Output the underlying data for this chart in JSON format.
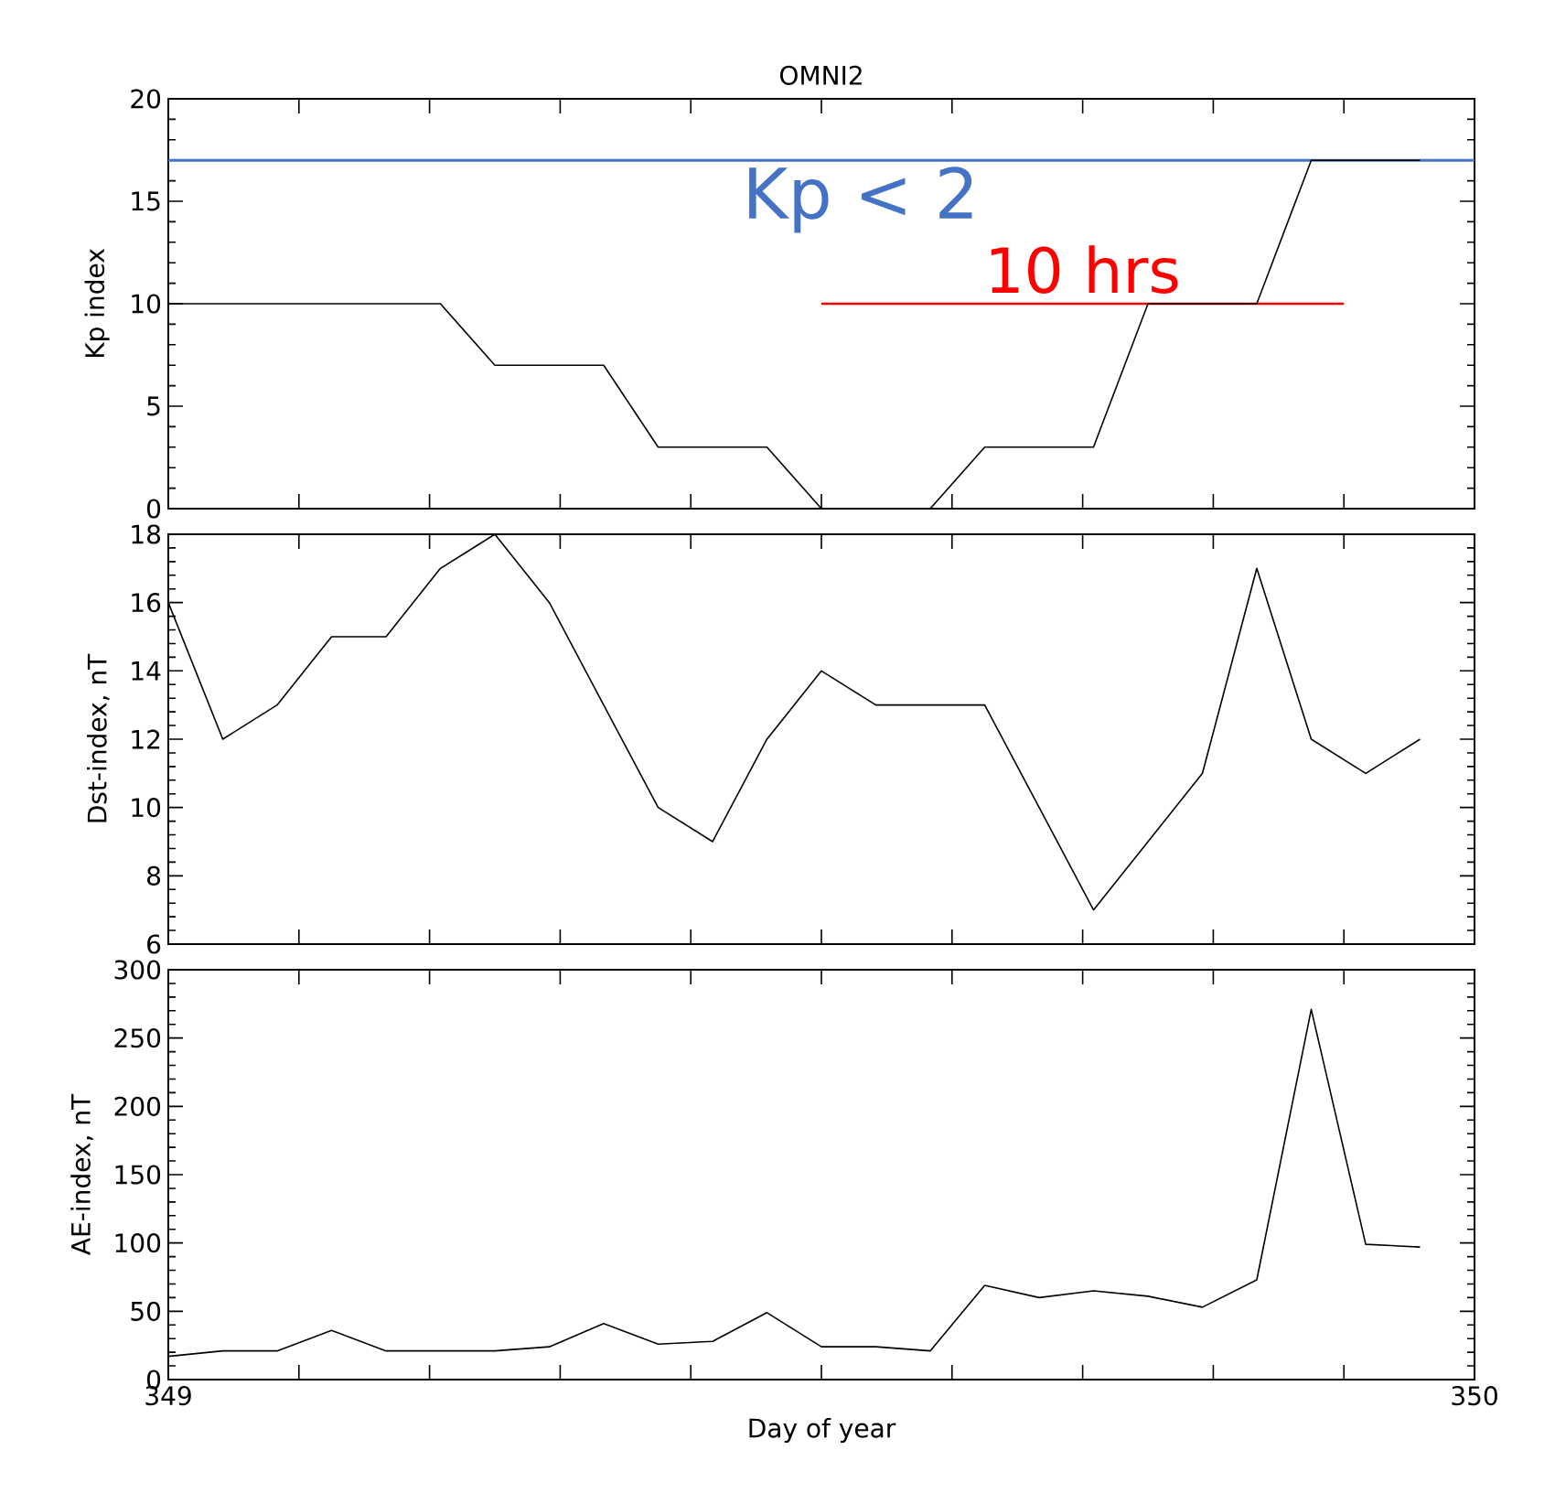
{
  "chart_data": [
    {
      "type": "line",
      "title": "OMNI2",
      "ylabel": "Kp index",
      "x": [
        349.0,
        349.0417,
        349.0833,
        349.125,
        349.1667,
        349.2083,
        349.25,
        349.2917,
        349.3333,
        349.375,
        349.4167,
        349.4583,
        349.5,
        349.5417,
        349.5833,
        349.625,
        349.6667,
        349.7083,
        349.75,
        349.7917,
        349.8333,
        349.875,
        349.9167,
        349.9583
      ],
      "series": [
        {
          "color": "#000000",
          "values": [
            10,
            10,
            10,
            10,
            10,
            10,
            7,
            7,
            7,
            3,
            3,
            3,
            0,
            0,
            0,
            3,
            3,
            3,
            10,
            10,
            10,
            17,
            17,
            17
          ]
        },
        {
          "type": "line",
          "color": "#ff0000",
          "x": [
            349.5,
            349.9
          ],
          "values": [
            10,
            10
          ]
        }
      ],
      "ref_lines": [
        {
          "axis": "y",
          "value": 17,
          "label": "Kp < 2",
          "color": "#4472c4"
        }
      ],
      "annotations": [
        {
          "text": "10 hrs",
          "x": 349.7,
          "y": 10
        }
      ],
      "xlim": [
        349,
        350
      ],
      "ylim": [
        0,
        20
      ],
      "xticks": [
        349,
        {
          "value": 349.1,
          "label": null
        },
        {
          "value": 349.2,
          "label": null
        },
        {
          "value": 349.3,
          "label": null
        },
        {
          "value": 349.4,
          "label": null
        },
        {
          "value": 349.5,
          "label": null
        },
        {
          "value": 349.6,
          "label": null
        },
        {
          "value": 349.7,
          "label": null
        },
        {
          "value": 349.8,
          "label": null
        },
        {
          "value": 349.9,
          "label": null
        },
        350
      ],
      "yticks": [
        0,
        5,
        10,
        15,
        20
      ],
      "tick_labels": "y"
    },
    {
      "type": "line",
      "ylabel": "Dst-index, nT",
      "x": [
        349.0,
        349.0417,
        349.0833,
        349.125,
        349.1667,
        349.2083,
        349.25,
        349.2917,
        349.3333,
        349.375,
        349.4167,
        349.4583,
        349.5,
        349.5417,
        349.5833,
        349.625,
        349.6667,
        349.7083,
        349.75,
        349.7917,
        349.8333,
        349.875,
        349.9167,
        349.9583
      ],
      "series": [
        {
          "color": "#000000",
          "values": [
            16,
            12,
            13,
            15,
            15,
            17,
            18,
            16,
            13,
            10,
            9,
            12,
            14,
            13,
            13,
            13,
            10,
            7,
            9,
            11,
            17,
            12,
            11,
            12
          ]
        }
      ],
      "xlim": [
        349,
        350
      ],
      "ylim": [
        6,
        18
      ],
      "xticks": [
        349,
        {
          "value": 349.1,
          "label": null
        },
        {
          "value": 349.2,
          "label": null
        },
        {
          "value": 349.3,
          "label": null
        },
        {
          "value": 349.4,
          "label": null
        },
        {
          "value": 349.5,
          "label": null
        },
        {
          "value": 349.6,
          "label": null
        },
        {
          "value": 349.7,
          "label": null
        },
        {
          "value": 349.8,
          "label": null
        },
        {
          "value": 349.9,
          "label": null
        },
        350
      ],
      "yticks": [
        6,
        8,
        10,
        12,
        14,
        16,
        18
      ],
      "tick_labels": "y"
    },
    {
      "type": "line",
      "ylabel": "AE-index, nT",
      "xlabel": "Day of year",
      "x": [
        349.0,
        349.0417,
        349.0833,
        349.125,
        349.1667,
        349.2083,
        349.25,
        349.2917,
        349.3333,
        349.375,
        349.4167,
        349.4583,
        349.5,
        349.5417,
        349.5833,
        349.625,
        349.6667,
        349.7083,
        349.75,
        349.7917,
        349.8333,
        349.875,
        349.9167,
        349.9583
      ],
      "series": [
        {
          "color": "#000000",
          "values": [
            17,
            21,
            21,
            36,
            21,
            21,
            21,
            24,
            41,
            26,
            28,
            49,
            24,
            24,
            21,
            69,
            60,
            65,
            61,
            53,
            73,
            271,
            99,
            97
          ]
        }
      ],
      "xlim": [
        349,
        350
      ],
      "ylim": [
        0,
        300
      ],
      "xticks": [
        349,
        {
          "value": 349.1,
          "label": null
        },
        {
          "value": 349.2,
          "label": null
        },
        {
          "value": 349.3,
          "label": null
        },
        {
          "value": 349.4,
          "label": null
        },
        {
          "value": 349.5,
          "label": null
        },
        {
          "value": 349.6,
          "label": null
        },
        {
          "value": 349.7,
          "label": null
        },
        {
          "value": 349.8,
          "label": null
        },
        {
          "value": 349.9,
          "label": null
        },
        350
      ],
      "yticks": [
        0,
        50,
        100,
        150,
        200,
        250,
        300
      ]
    }
  ]
}
